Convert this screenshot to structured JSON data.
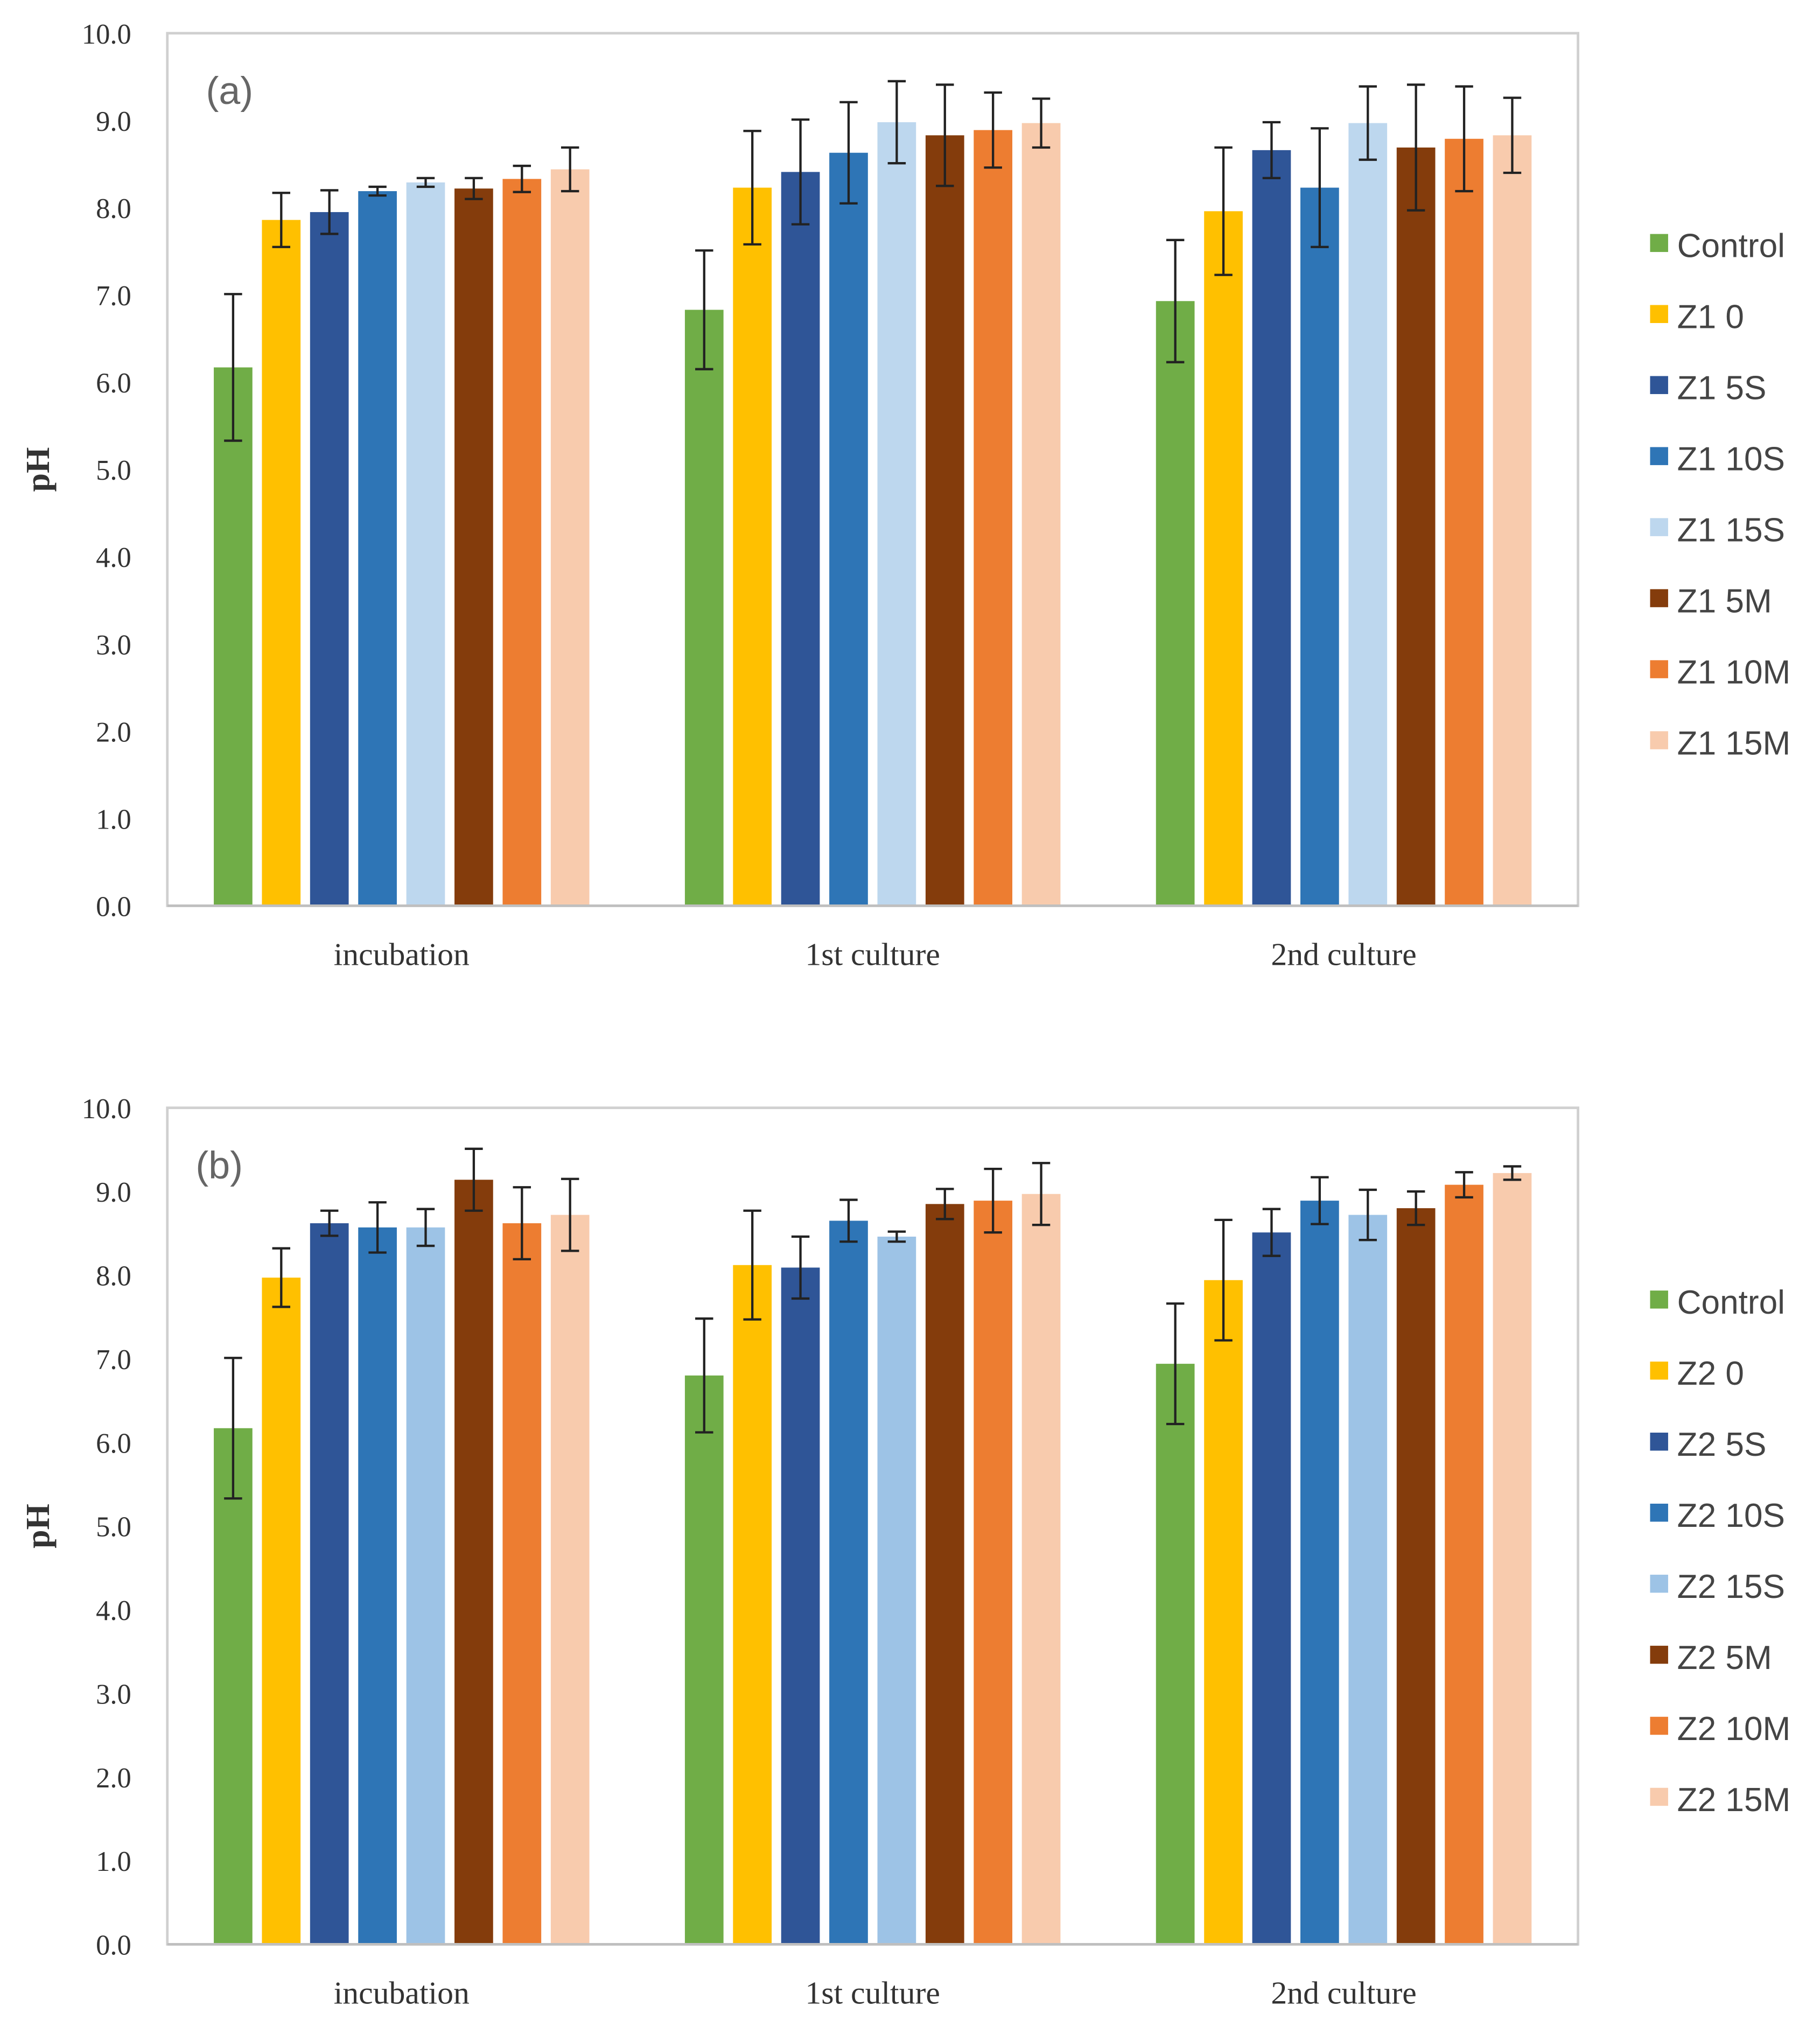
{
  "chart_data": [
    {
      "type": "bar",
      "panel_label": "(a)",
      "ylabel": "pH",
      "xlabel": "",
      "ylim": [
        0,
        10
      ],
      "yticks": [
        "0.0",
        "1.0",
        "2.0",
        "3.0",
        "4.0",
        "5.0",
        "6.0",
        "7.0",
        "8.0",
        "9.0",
        "10.0"
      ],
      "categories": [
        "incubation",
        "1st culture",
        "2nd culture"
      ],
      "legend_position": "right",
      "error_bars": true,
      "series": [
        {
          "name": "Control",
          "color": "#70AD47",
          "values": [
            6.17,
            6.83,
            6.93
          ],
          "errors": [
            0.84,
            0.68,
            0.7
          ]
        },
        {
          "name": "Z1 0",
          "color": "#FFC000",
          "values": [
            7.86,
            8.23,
            7.96
          ],
          "errors": [
            0.31,
            0.65,
            0.73
          ]
        },
        {
          "name": "Z1 5S",
          "color": "#2F5597",
          "values": [
            7.95,
            8.41,
            8.66
          ],
          "errors": [
            0.25,
            0.6,
            0.32
          ]
        },
        {
          "name": "Z1 10S",
          "color": "#2E75B6",
          "values": [
            8.19,
            8.63,
            8.23
          ],
          "errors": [
            0.05,
            0.58,
            0.68
          ]
        },
        {
          "name": "Z1 15S",
          "color": "#BDD7EE",
          "values": [
            8.29,
            8.98,
            8.97
          ],
          "errors": [
            0.05,
            0.47,
            0.42
          ]
        },
        {
          "name": "Z1 5M",
          "color": "#843C0C",
          "values": [
            8.22,
            8.83,
            8.69
          ],
          "errors": [
            0.12,
            0.58,
            0.72
          ]
        },
        {
          "name": "Z1 10M",
          "color": "#ED7D31",
          "values": [
            8.33,
            8.89,
            8.79
          ],
          "errors": [
            0.15,
            0.43,
            0.6
          ]
        },
        {
          "name": "Z1 15M",
          "color": "#F8CBAD",
          "values": [
            8.44,
            8.97,
            8.83
          ],
          "errors": [
            0.25,
            0.28,
            0.43
          ]
        }
      ]
    },
    {
      "type": "bar",
      "panel_label": "(b)",
      "ylabel": "pH",
      "xlabel": "",
      "ylim": [
        0,
        10
      ],
      "yticks": [
        "0.0",
        "1.0",
        "2.0",
        "3.0",
        "4.0",
        "5.0",
        "6.0",
        "7.0",
        "8.0",
        "9.0",
        "10.0"
      ],
      "categories": [
        "incubation",
        "1st culture",
        "2nd culture"
      ],
      "legend_position": "right",
      "error_bars": true,
      "series": [
        {
          "name": "Control",
          "color": "#70AD47",
          "values": [
            6.17,
            6.8,
            6.94
          ],
          "errors": [
            0.84,
            0.68,
            0.72
          ]
        },
        {
          "name": "Z2 0",
          "color": "#FFC000",
          "values": [
            7.97,
            8.12,
            7.94
          ],
          "errors": [
            0.35,
            0.65,
            0.72
          ]
        },
        {
          "name": "Z2 5S",
          "color": "#2F5597",
          "values": [
            8.62,
            8.09,
            8.51
          ],
          "errors": [
            0.15,
            0.37,
            0.28
          ]
        },
        {
          "name": "Z2 10S",
          "color": "#2E75B6",
          "values": [
            8.57,
            8.65,
            8.89
          ],
          "errors": [
            0.3,
            0.25,
            0.28
          ]
        },
        {
          "name": "Z2 15S",
          "color": "#9DC3E6",
          "values": [
            8.57,
            8.46,
            8.72
          ],
          "errors": [
            0.22,
            0.06,
            0.3
          ]
        },
        {
          "name": "Z2 5M",
          "color": "#843C0C",
          "values": [
            9.14,
            8.85,
            8.8
          ],
          "errors": [
            0.37,
            0.18,
            0.2
          ]
        },
        {
          "name": "Z2 10M",
          "color": "#ED7D31",
          "values": [
            8.62,
            8.89,
            9.08
          ],
          "errors": [
            0.43,
            0.38,
            0.15
          ]
        },
        {
          "name": "Z2 15M",
          "color": "#F8CBAD",
          "values": [
            8.72,
            8.97,
            9.22
          ],
          "errors": [
            0.43,
            0.37,
            0.08
          ]
        }
      ]
    }
  ]
}
